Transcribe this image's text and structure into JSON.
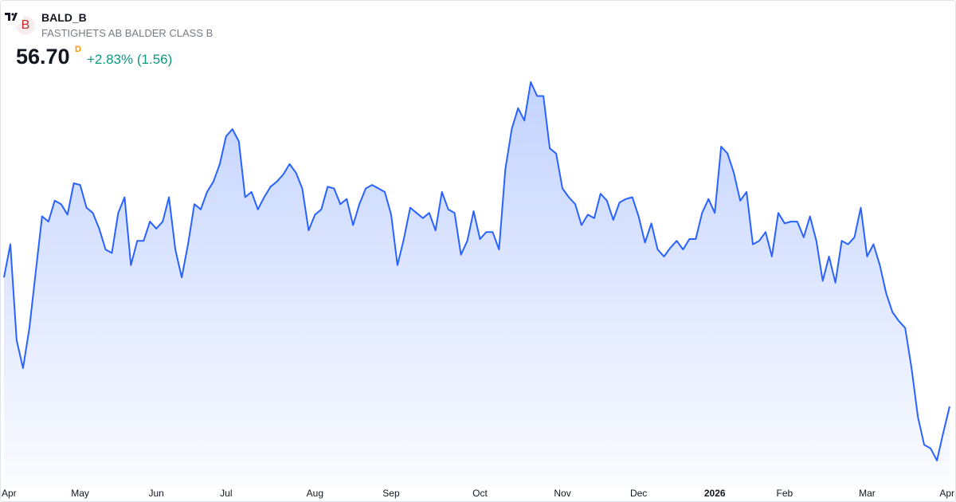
{
  "header": {
    "logo_letter": "B",
    "symbol": "BALD_B",
    "description": "FASTIGHETS AB BALDER CLASS B",
    "price": "56.70",
    "interval": "D",
    "change": "+2.83% (1.56)"
  },
  "chart_data": {
    "type": "area",
    "color": "#2962ff",
    "categories": [
      "Apr",
      null,
      null,
      null,
      null,
      null,
      null,
      null,
      null,
      null,
      null,
      null,
      "May",
      null,
      null,
      null,
      null,
      null,
      null,
      null,
      null,
      null,
      null,
      null,
      "Jun",
      null,
      null,
      null,
      null,
      null,
      null,
      null,
      null,
      null,
      null,
      "Jul",
      null,
      null,
      null,
      null,
      null,
      null,
      null,
      null,
      null,
      null,
      null,
      null,
      null,
      "Aug",
      null,
      null,
      null,
      null,
      null,
      null,
      null,
      null,
      null,
      null,
      null,
      "Sep",
      null,
      null,
      null,
      null,
      null,
      null,
      null,
      null,
      null,
      null,
      null,
      null,
      null,
      "Oct",
      null,
      null,
      null,
      null,
      null,
      null,
      null,
      null,
      null,
      null,
      null,
      null,
      "Nov",
      null,
      null,
      null,
      null,
      null,
      null,
      null,
      null,
      null,
      null,
      null,
      "Dec",
      null,
      null,
      null,
      null,
      null,
      null,
      null,
      null,
      null,
      null,
      null,
      "2026",
      null,
      null,
      null,
      null,
      null,
      null,
      null,
      null,
      null,
      null,
      "Feb",
      null,
      null,
      null,
      null,
      null,
      null,
      null,
      null,
      null,
      null,
      null,
      null,
      "Mar",
      null,
      null,
      null,
      null,
      null,
      null,
      null,
      null,
      null,
      null,
      null,
      null,
      "Apr"
    ],
    "values": [
      64.1,
      66.0,
      60.5,
      58.9,
      61.2,
      64.4,
      67.6,
      67.3,
      68.5,
      68.3,
      67.7,
      69.5,
      69.4,
      68.1,
      67.8,
      66.9,
      65.7,
      65.5,
      67.8,
      68.7,
      64.8,
      66.2,
      66.2,
      67.3,
      66.9,
      67.3,
      68.7,
      65.7,
      64.1,
      66.0,
      68.3,
      68.0,
      69.0,
      69.6,
      70.6,
      72.2,
      72.6,
      71.9,
      68.7,
      69.0,
      68.0,
      68.7,
      69.3,
      69.6,
      70.0,
      70.6,
      70.1,
      69.2,
      66.8,
      67.7,
      68.0,
      69.3,
      69.2,
      68.3,
      68.6,
      67.1,
      68.3,
      69.2,
      69.4,
      69.2,
      69.0,
      67.7,
      64.8,
      66.3,
      68.1,
      67.8,
      67.5,
      67.8,
      66.8,
      69.0,
      68.0,
      67.8,
      65.4,
      66.2,
      67.9,
      66.3,
      66.7,
      66.7,
      65.7,
      70.3,
      72.6,
      73.8,
      73.1,
      75.3,
      74.5,
      74.5,
      71.5,
      71.2,
      69.2,
      68.7,
      68.3,
      67.1,
      67.7,
      67.5,
      68.9,
      68.5,
      67.4,
      68.4,
      68.6,
      68.7,
      67.6,
      66.1,
      67.2,
      65.7,
      65.3,
      65.8,
      66.2,
      65.7,
      66.3,
      66.3,
      67.8,
      68.6,
      67.8,
      71.6,
      71.2,
      70.1,
      68.5,
      69.0,
      66.0,
      66.2,
      66.7,
      65.3,
      67.8,
      67.2,
      67.3,
      67.3,
      66.4,
      67.6,
      66.2,
      63.9,
      65.3,
      63.8,
      66.2,
      66.0,
      66.4,
      68.1,
      65.3,
      66.0,
      64.8,
      63.2,
      62.1,
      61.6,
      61.2,
      58.9,
      56.1,
      54.5,
      54.3,
      53.6,
      55.2,
      56.7
    ]
  }
}
